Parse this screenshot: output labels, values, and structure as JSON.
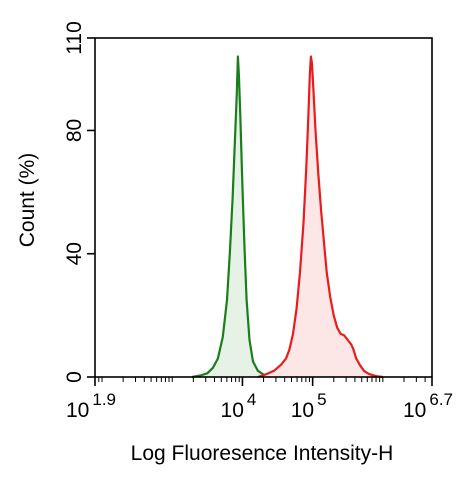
{
  "chart_data": {
    "type": "area",
    "xlabel": "Log Fluoresence Intensity-H",
    "ylabel": "Count  (%)",
    "x_scale": "log10",
    "xlim": [
      1.9,
      6.7
    ],
    "ylim": [
      0,
      110
    ],
    "x_ticks": [
      {
        "exp": 1.9,
        "base": "10",
        "sup": "1.9"
      },
      {
        "exp": 4,
        "base": "10",
        "sup": "4"
      },
      {
        "exp": 5,
        "base": "10",
        "sup": "5"
      },
      {
        "exp": 6.7,
        "base": "10",
        "sup": "6.7"
      }
    ],
    "y_ticks": [
      {
        "value": 0,
        "label": "0"
      },
      {
        "value": 40,
        "label": "40"
      },
      {
        "value": 80,
        "label": "80"
      },
      {
        "value": 110,
        "label": "110"
      }
    ],
    "grid": false,
    "series": [
      {
        "color": "#1a7f1a",
        "fill": "#e6f2e6",
        "points": [
          [
            3.28,
            0
          ],
          [
            3.4,
            0.5
          ],
          [
            3.5,
            1.2
          ],
          [
            3.58,
            3
          ],
          [
            3.65,
            6
          ],
          [
            3.72,
            13
          ],
          [
            3.78,
            25
          ],
          [
            3.82,
            40
          ],
          [
            3.86,
            58
          ],
          [
            3.89,
            75
          ],
          [
            3.92,
            92
          ],
          [
            3.935,
            104
          ],
          [
            3.95,
            98
          ],
          [
            3.97,
            85
          ],
          [
            4.0,
            62
          ],
          [
            4.03,
            42
          ],
          [
            4.06,
            25
          ],
          [
            4.1,
            12
          ],
          [
            4.15,
            5
          ],
          [
            4.22,
            2
          ],
          [
            4.3,
            0.8
          ],
          [
            4.4,
            0
          ]
        ]
      },
      {
        "color": "#e81c1c",
        "fill": "#fde6e6",
        "points": [
          [
            4.22,
            0
          ],
          [
            4.35,
            1
          ],
          [
            4.45,
            2
          ],
          [
            4.55,
            4
          ],
          [
            4.62,
            6
          ],
          [
            4.67,
            9
          ],
          [
            4.72,
            14
          ],
          [
            4.77,
            22
          ],
          [
            4.82,
            34
          ],
          [
            4.87,
            50
          ],
          [
            4.91,
            68
          ],
          [
            4.94,
            85
          ],
          [
            4.96,
            98
          ],
          [
            4.975,
            104
          ],
          [
            4.99,
            102
          ],
          [
            5.01,
            94
          ],
          [
            5.04,
            80
          ],
          [
            5.08,
            66
          ],
          [
            5.12,
            54
          ],
          [
            5.16,
            44
          ],
          [
            5.2,
            34
          ],
          [
            5.25,
            26
          ],
          [
            5.3,
            20
          ],
          [
            5.35,
            16
          ],
          [
            5.4,
            14
          ],
          [
            5.45,
            13.5
          ],
          [
            5.5,
            12
          ],
          [
            5.55,
            10.5
          ],
          [
            5.58,
            9
          ],
          [
            5.62,
            6
          ],
          [
            5.67,
            4
          ],
          [
            5.73,
            2
          ],
          [
            5.8,
            1
          ],
          [
            5.9,
            0.3
          ],
          [
            6.0,
            0
          ]
        ]
      }
    ]
  }
}
